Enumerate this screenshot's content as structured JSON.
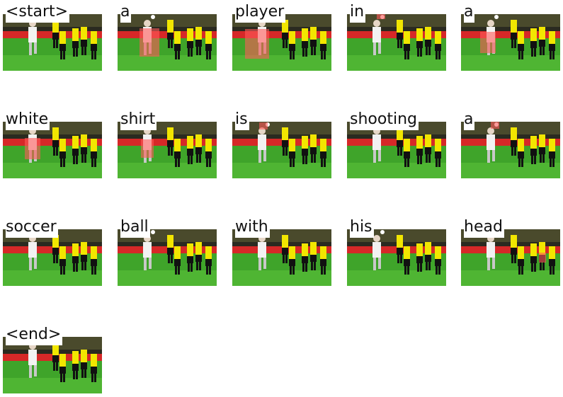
{
  "tokens": [
    {
      "word": "<start>"
    },
    {
      "word": "a"
    },
    {
      "word": "player"
    },
    {
      "word": "in"
    },
    {
      "word": "a"
    },
    {
      "word": "white"
    },
    {
      "word": "shirt"
    },
    {
      "word": "is"
    },
    {
      "word": "shooting"
    },
    {
      "word": "a"
    },
    {
      "word": "soccer"
    },
    {
      "word": "ball"
    },
    {
      "word": "with"
    },
    {
      "word": "his"
    },
    {
      "word": "head"
    },
    {
      "word": "<end>"
    }
  ],
  "colors": {
    "pitch": "#3fa42a",
    "stands": "#2a2a20",
    "ad_board": "#d62828",
    "yellow_kit": "#f2e600",
    "white_kit": "#f2f2f2",
    "attention": "#ff5a5a"
  }
}
